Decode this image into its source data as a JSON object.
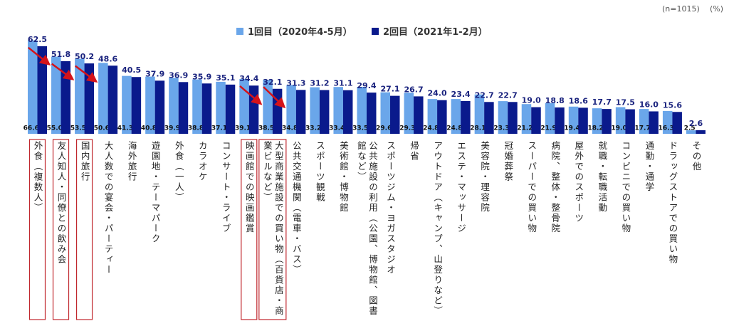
{
  "chart_data": {
    "type": "bar",
    "sample_size": "(n=1015)",
    "unit": "(%)",
    "categories": [
      "外食（複数人）",
      "友人知人・同僚との飲み会",
      "国内旅行",
      "大人数での宴会・パーティー",
      "海外旅行",
      "遊園地・テーマパーク",
      "外食（一人）",
      "カラオケ",
      "コンサート・ライブ",
      "映画館での映画鑑賞",
      "大型商業施設での買い物（百貨店・商業ビルなど）",
      "公共交通機関（電車・バス）",
      "スポーツ観戦",
      "美術館・博物館",
      "公共施設の利用（公園、博物館、図書館など）",
      "スポーツジム・ヨガスタジオ",
      "帰省",
      "アウトドア（キャンプ、山登りなど）",
      "エステ・マッサージ",
      "美容院・理容院",
      "冠婚葬祭",
      "スーパーでの買い物",
      "病院、整体・整骨院",
      "屋外でのスポーツ",
      "就職・転職活動",
      "コンビニでの買い物",
      "通勤・通学",
      "ドラッグストアでの買い物",
      "その他"
    ],
    "series": [
      {
        "name": "1回目（2020年4-5月）",
        "color": "#6aa6ea",
        "values": [
          66.6,
          55.0,
          53.5,
          50.6,
          41.3,
          40.8,
          39.9,
          38.8,
          37.1,
          39.1,
          38.5,
          34.8,
          33.2,
          33.4,
          33.5,
          29.6,
          29.3,
          24.8,
          24.8,
          28.1,
          23.3,
          21.2,
          21.9,
          19.4,
          18.2,
          19.0,
          17.7,
          16.3,
          2.5
        ],
        "value_labels": [
          "66.6",
          "55.0",
          "53.5",
          "50.6",
          "41.3",
          "40.8",
          "39.9",
          "38.8",
          "37.1",
          "39.1",
          "38.5",
          "34.8",
          "33.2",
          "33.4",
          "33.5",
          "29.6",
          "29.3",
          "24.8",
          "24.8",
          "28.1",
          "23.3",
          "21.2",
          "21.9",
          "19.4",
          "18.2",
          "19.0",
          "17.7",
          "16.3",
          "2.5"
        ]
      },
      {
        "name": "2回目（2021年1-2月）",
        "color": "#0a1a8c",
        "values": [
          62.5,
          51.8,
          50.2,
          48.6,
          40.5,
          37.9,
          36.9,
          35.9,
          35.1,
          34.4,
          32.1,
          31.3,
          31.2,
          31.1,
          29.4,
          27.1,
          26.7,
          24.0,
          23.4,
          22.7,
          22.7,
          19.0,
          18.8,
          18.6,
          17.7,
          17.5,
          16.0,
          15.6,
          2.6
        ],
        "value_labels": [
          "62.5",
          "51.8",
          "50.2",
          "48.6",
          "40.5",
          "37.9",
          "36.9",
          "35.9",
          "35.1",
          "34.4",
          "32.1",
          "31.3",
          "31.2",
          "31.1",
          "29.4",
          "27.1",
          "26.7",
          "24.0",
          "23.4",
          "22.7",
          "22.7",
          "19.0",
          "18.8",
          "18.6",
          "17.7",
          "17.5",
          "16.0",
          "15.6",
          "2.6"
        ]
      }
    ]
  }
}
